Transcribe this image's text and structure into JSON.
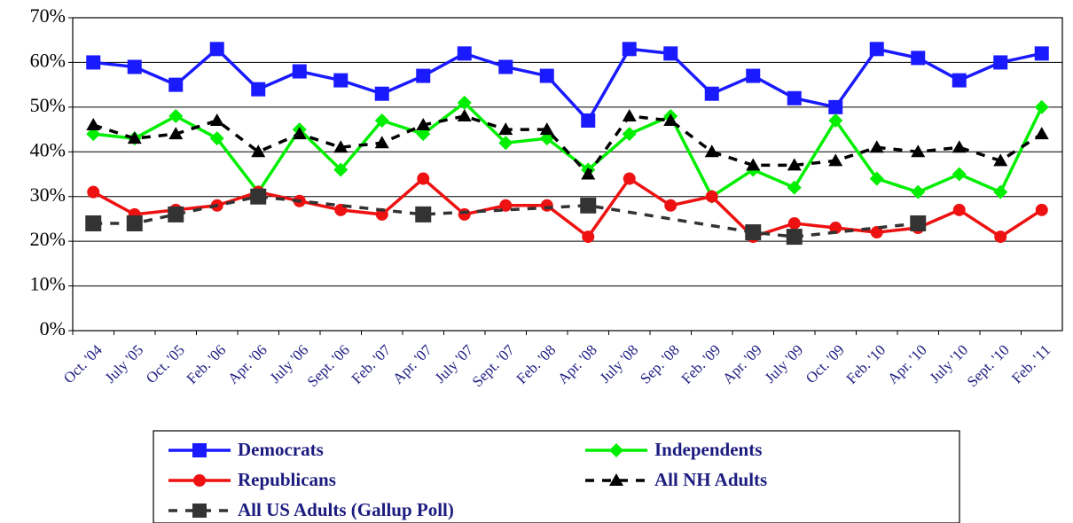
{
  "chart_data": {
    "type": "line",
    "categories": [
      "Oct. '04",
      "July '05",
      "Oct. '05",
      "Feb. '06",
      "Apr. '06",
      "July '06",
      "Sept. '06",
      "Feb. '07",
      "Apr. '07",
      "July '07",
      "Sept. '07",
      "Feb. '08",
      "Apr. '08",
      "July '08",
      "Sep. '08",
      "Feb. '09",
      "Apr. '09",
      "July '09",
      "Oct. '09",
      "Feb. '10",
      "Apr. '10",
      "July '10",
      "Sept. '10",
      "Feb. '11"
    ],
    "series": [
      {
        "name": "Democrats",
        "color": "#1a1aff",
        "marker": "square",
        "dash": false,
        "values": [
          60,
          59,
          55,
          63,
          54,
          58,
          56,
          53,
          57,
          62,
          59,
          57,
          47,
          63,
          62,
          53,
          57,
          52,
          50,
          63,
          61,
          56,
          60,
          62
        ]
      },
      {
        "name": "Independents",
        "color": "#00ee00",
        "marker": "diamond",
        "dash": false,
        "values": [
          44,
          43,
          48,
          43,
          31,
          45,
          36,
          47,
          44,
          51,
          42,
          43,
          36,
          44,
          48,
          30,
          36,
          32,
          47,
          34,
          31,
          35,
          31,
          50
        ]
      },
      {
        "name": "Republicans",
        "color": "#ee1111",
        "marker": "circle",
        "dash": false,
        "values": [
          31,
          26,
          27,
          28,
          31,
          29,
          27,
          26,
          34,
          26,
          28,
          28,
          21,
          34,
          28,
          30,
          21,
          24,
          23,
          22,
          23,
          27,
          21,
          27
        ]
      },
      {
        "name": "All NH Adults",
        "color": "#000000",
        "marker": "triangle",
        "dash": true,
        "values": [
          46,
          43,
          44,
          47,
          40,
          44,
          41,
          42,
          46,
          48,
          45,
          45,
          35,
          48,
          47,
          40,
          37,
          37,
          38,
          41,
          40,
          41,
          38,
          44
        ]
      },
      {
        "name": "All US Adults (Gallup Poll)",
        "color": "#333333",
        "marker": "square",
        "dash": true,
        "values": [
          24,
          24,
          26,
          null,
          30,
          null,
          null,
          null,
          26,
          null,
          null,
          null,
          28,
          null,
          null,
          null,
          22,
          21,
          null,
          null,
          24,
          null,
          null,
          null
        ]
      }
    ],
    "connect_gaps": true,
    "ylim": [
      0,
      70
    ],
    "yticks": [
      {
        "value": 0,
        "label": "0%"
      },
      {
        "value": 10,
        "label": "10%"
      },
      {
        "value": 20,
        "label": "20%"
      },
      {
        "value": 30,
        "label": "30%"
      },
      {
        "value": 40,
        "label": "40%"
      },
      {
        "value": 50,
        "label": "50%"
      },
      {
        "value": 60,
        "label": "60%"
      },
      {
        "value": 70,
        "label": "70%"
      }
    ],
    "grid": true
  }
}
